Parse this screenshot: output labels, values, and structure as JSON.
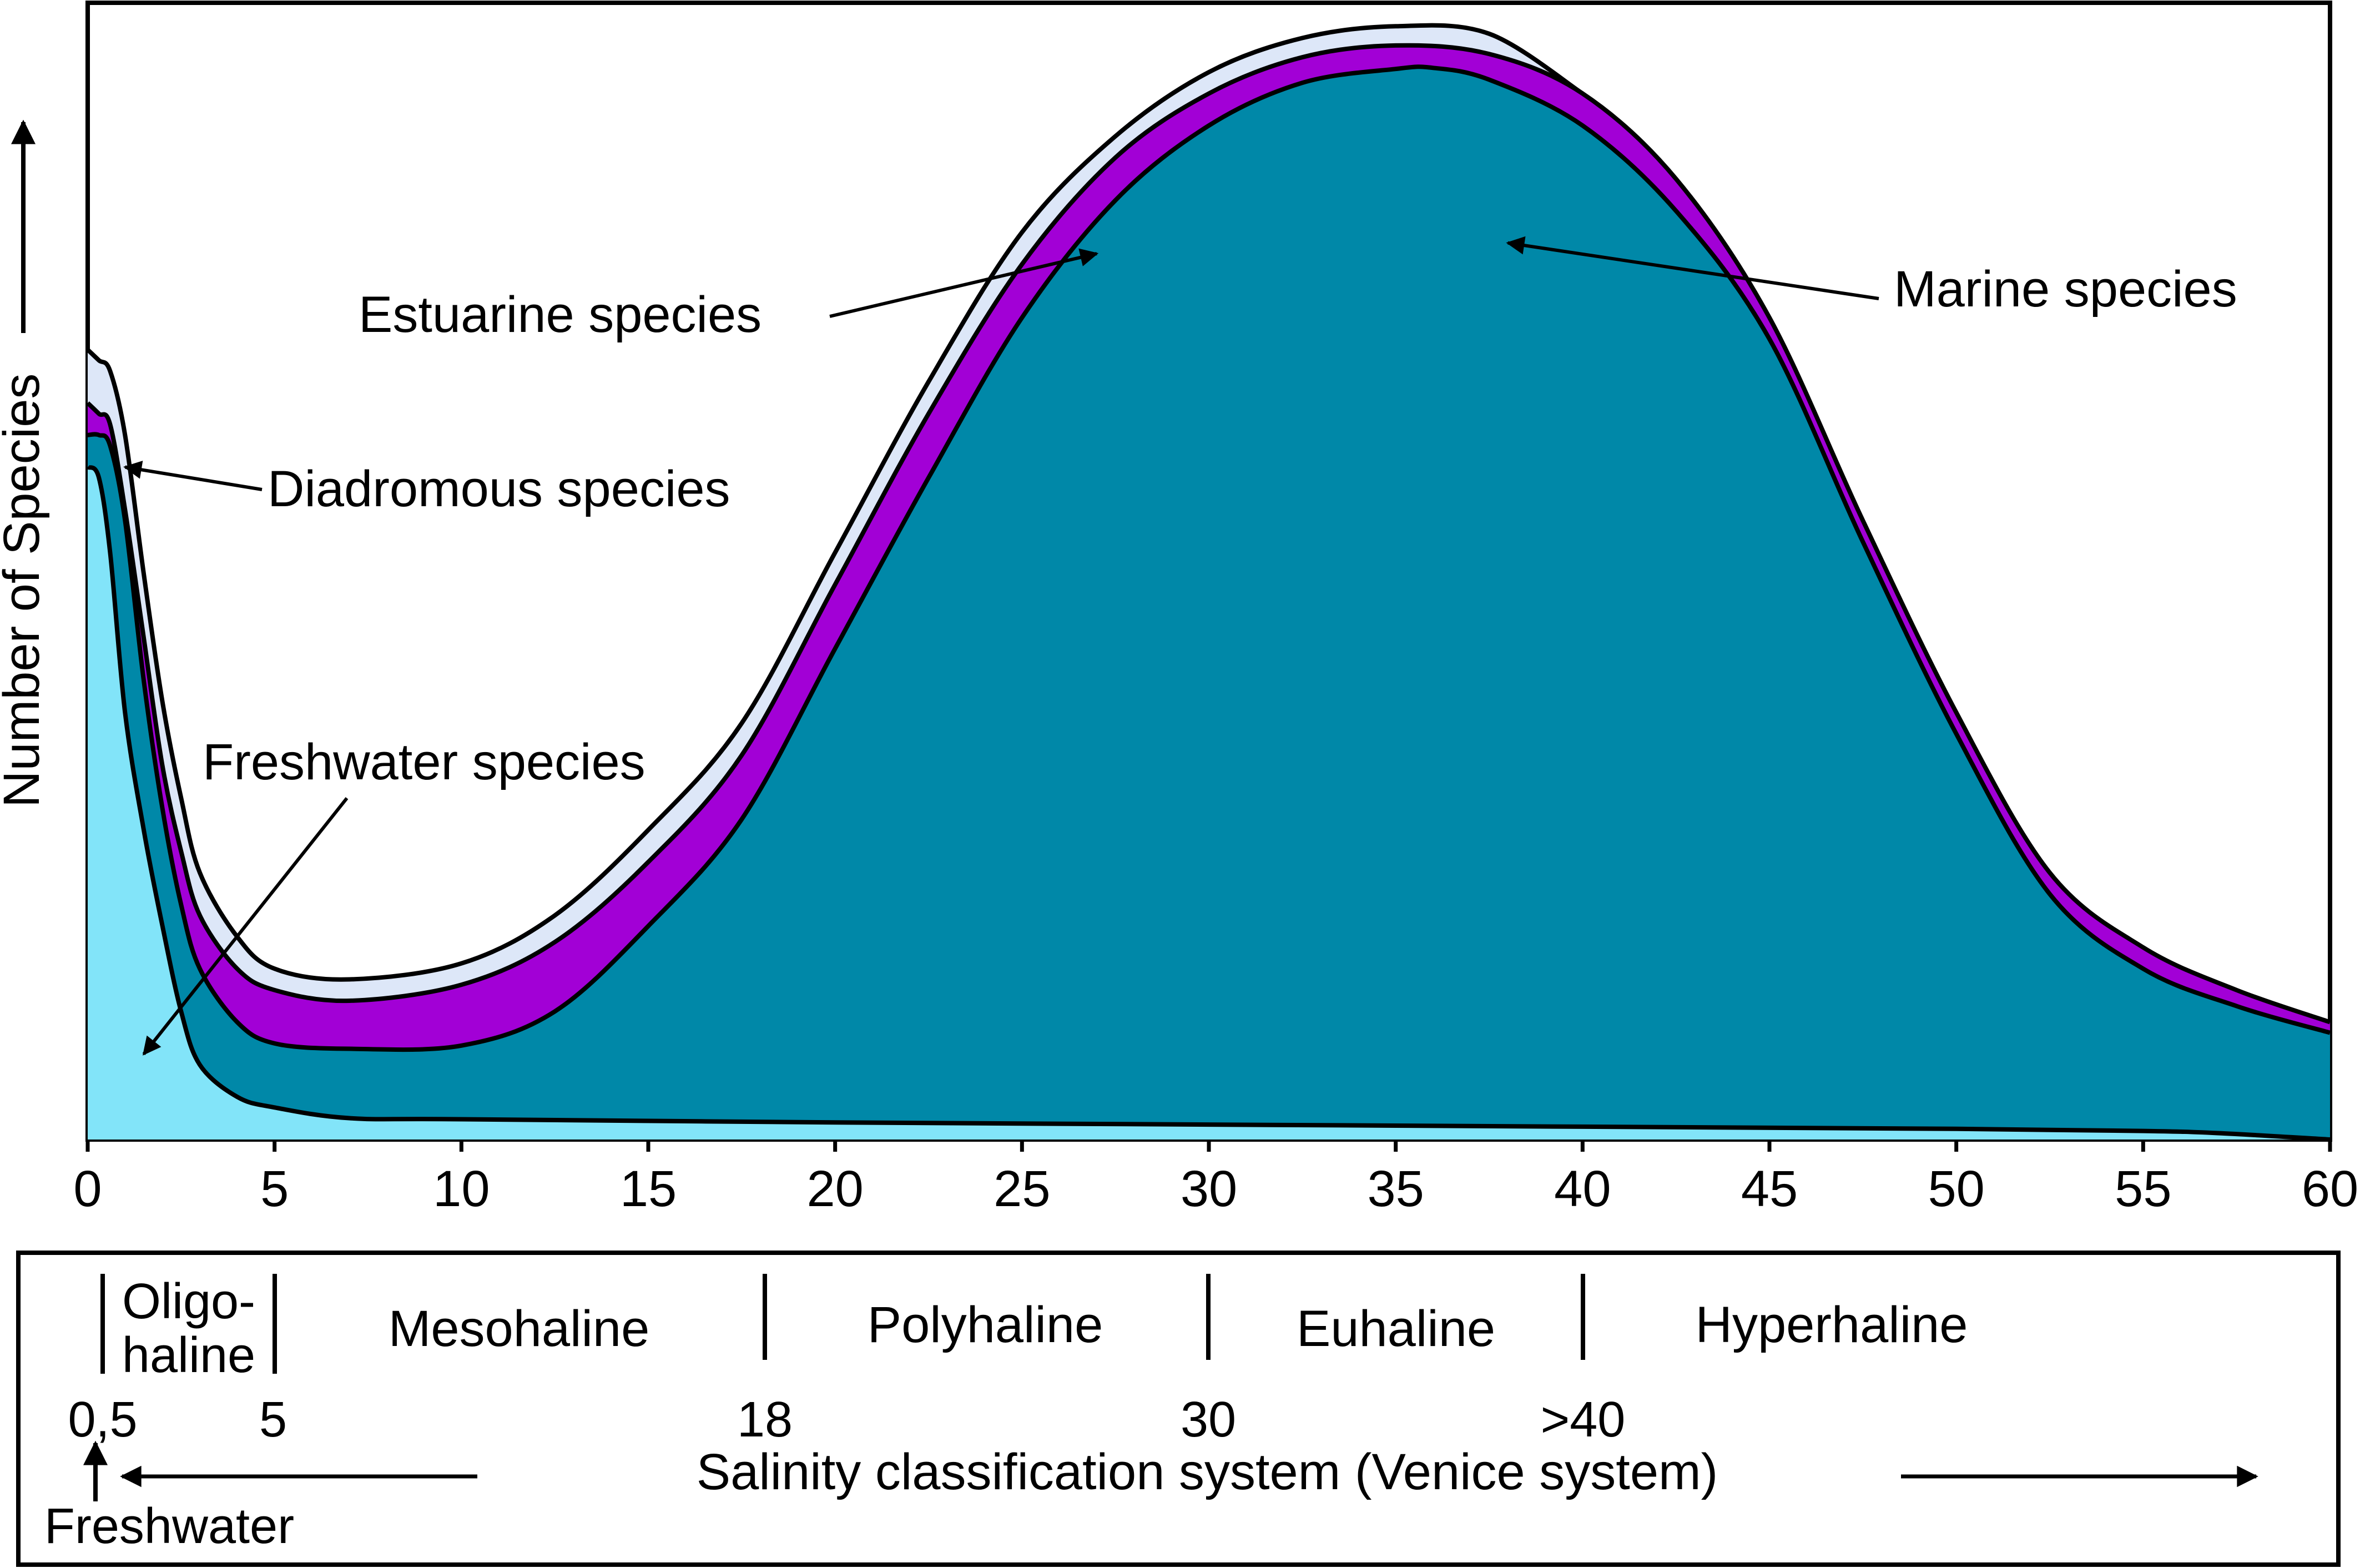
{
  "chart_data": {
    "type": "area",
    "title": "",
    "xlabel": "",
    "ylabel": "Number of Species",
    "xlim": [
      0,
      60
    ],
    "ylim": [
      0,
      100
    ],
    "x_ticks": [
      0,
      5,
      10,
      15,
      20,
      25,
      30,
      35,
      40,
      45,
      50,
      55,
      60
    ],
    "x_tick_labels": [
      "0",
      "5",
      "10",
      "15",
      "20",
      "25",
      "30",
      "35",
      "40",
      "45",
      "50",
      "55",
      "60"
    ],
    "stack_order": [
      "Freshwater species",
      "Marine species",
      "Estuarine species",
      "Diadromous species"
    ],
    "cumulative": true,
    "series": [
      {
        "name": "Freshwater species",
        "color": "#82e4f9",
        "x": [
          0,
          0.3,
          0.6,
          1,
          1.5,
          2,
          2.5,
          3,
          4,
          5,
          7,
          10,
          20,
          30,
          40,
          50,
          55,
          57,
          60
        ],
        "values": [
          63,
          62,
          55,
          40,
          29,
          20,
          12,
          7,
          4,
          3,
          2,
          1.9,
          1.6,
          1.4,
          1.2,
          1.0,
          0.8,
          0.6,
          0
        ]
      },
      {
        "name": "Marine species",
        "color": "#0088a8",
        "x": [
          0,
          0.3,
          0.6,
          1,
          1.5,
          2,
          2.5,
          3,
          4,
          5,
          7,
          10,
          12.5,
          15,
          17.5,
          20,
          22.5,
          25,
          27.5,
          30,
          32.5,
          35,
          36,
          37.5,
          40,
          42.5,
          45,
          47.5,
          50,
          52.5,
          55,
          57.5,
          60
        ],
        "values": [
          66,
          66,
          65,
          58,
          43,
          31,
          22,
          16,
          11,
          9,
          8.5,
          8.8,
          12,
          20,
          30,
          46,
          62,
          77,
          88,
          95,
          99,
          100.3,
          100.4,
          99.3,
          95,
          87,
          75,
          56,
          38,
          23,
          16,
          12.5,
          10
        ]
      },
      {
        "name": "Estuarine species",
        "color": "#a200d6",
        "x": [
          0,
          0.3,
          0.6,
          1,
          1.5,
          2,
          2.5,
          3,
          4,
          5,
          7,
          10,
          12.5,
          15,
          17.5,
          20,
          22.5,
          25,
          27.5,
          30,
          32.5,
          35,
          37.5,
          40,
          42.5,
          45,
          47.5,
          50,
          52.5,
          55,
          57.5,
          60
        ],
        "values": [
          69,
          68,
          67,
          59,
          47,
          35,
          27,
          21,
          16,
          14,
          13,
          14.5,
          18.5,
          26,
          36,
          52,
          68,
          82,
          92,
          98,
          101.4,
          102.5,
          101.7,
          98,
          90,
          77,
          58,
          40,
          25,
          18,
          14,
          11
        ]
      },
      {
        "name": "Diadromous species",
        "color": "#dde7f8",
        "x": [
          0,
          0.3,
          0.6,
          1,
          1.5,
          2,
          2.5,
          3,
          4,
          5,
          7,
          10,
          12.5,
          15,
          17.5,
          20,
          22.5,
          25,
          27.5,
          30,
          32.5,
          35,
          37.5,
          40
        ],
        "values": [
          74,
          73,
          72,
          66,
          53,
          41,
          32,
          25,
          19,
          16,
          15,
          16.5,
          21,
          29,
          39,
          55,
          71,
          85,
          94,
          100,
          103.2,
          104.3,
          103.6,
          98
        ]
      }
    ],
    "annotations": [
      {
        "text": "Marine species",
        "points_to": {
          "x": 38,
          "y": 84
        }
      },
      {
        "text": "Estuarine species",
        "points_to": {
          "x": 27,
          "y": 83
        }
      },
      {
        "text": "Diadromous species",
        "points_to": {
          "x": 1,
          "y": 63
        }
      },
      {
        "text": "Freshwater species",
        "points_to": {
          "x": 1.5,
          "y": 8
        }
      }
    ]
  },
  "classification": {
    "zones": [
      "Oligo-",
      "haline",
      "Mesohaline",
      "Polyhaline",
      "Euhaline",
      "Hyperhaline"
    ],
    "boundaries": [
      "0,5",
      "5",
      "18",
      "30",
      ">40"
    ],
    "caption": "Salinity classification system (Venice system)",
    "freshwater_label": "Freshwater"
  }
}
